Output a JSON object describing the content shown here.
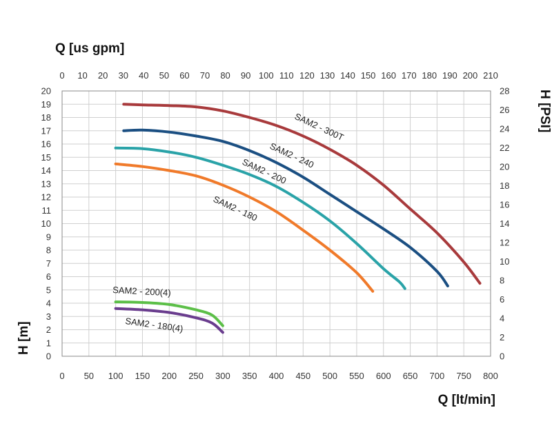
{
  "chart_data": {
    "type": "line",
    "title": "",
    "xlabel": "Q [lt/min]",
    "x2label": "Q [us gpm]",
    "ylabel": "H [m]",
    "y2label": "H [PSI]",
    "xlim": [
      0,
      800
    ],
    "x2lim": [
      0,
      210
    ],
    "ylim": [
      0,
      20
    ],
    "y2lim": [
      0,
      28
    ],
    "x_ticks": [
      0,
      50,
      100,
      150,
      200,
      250,
      300,
      350,
      400,
      450,
      500,
      550,
      600,
      650,
      700,
      750,
      800
    ],
    "x2_ticks": [
      0,
      10,
      20,
      30,
      40,
      50,
      60,
      70,
      80,
      90,
      100,
      110,
      120,
      130,
      140,
      150,
      160,
      170,
      180,
      190,
      200,
      210
    ],
    "y_ticks": [
      0,
      1,
      2,
      3,
      4,
      5,
      6,
      7,
      8,
      9,
      10,
      11,
      12,
      13,
      14,
      15,
      16,
      17,
      18,
      19,
      20
    ],
    "y2_ticks": [
      0,
      2,
      4,
      6,
      8,
      10,
      12,
      14,
      16,
      18,
      20,
      22,
      24,
      26,
      28
    ],
    "grid": true,
    "series": [
      {
        "name": "SAM2 - 300T",
        "color": "#a83a3c",
        "x": [
          115,
          150,
          200,
          250,
          300,
          350,
          400,
          450,
          500,
          550,
          600,
          650,
          700,
          750,
          780
        ],
        "y": [
          19.0,
          18.95,
          18.9,
          18.8,
          18.5,
          18.0,
          17.4,
          16.6,
          15.6,
          14.4,
          12.9,
          11.1,
          9.3,
          7.1,
          5.5
        ]
      },
      {
        "name": "SAM2 - 240",
        "color": "#1b4f82",
        "x": [
          115,
          150,
          200,
          250,
          300,
          350,
          400,
          450,
          500,
          550,
          600,
          650,
          700,
          720
        ],
        "y": [
          17.0,
          17.05,
          16.9,
          16.6,
          16.2,
          15.5,
          14.6,
          13.5,
          12.2,
          10.9,
          9.6,
          8.2,
          6.4,
          5.3
        ]
      },
      {
        "name": "SAM2 - 200",
        "color": "#2aa3a8",
        "x": [
          100,
          150,
          200,
          250,
          300,
          350,
          400,
          450,
          500,
          550,
          600,
          630,
          640
        ],
        "y": [
          15.7,
          15.65,
          15.4,
          15.0,
          14.4,
          13.7,
          12.8,
          11.6,
          10.2,
          8.5,
          6.6,
          5.6,
          5.1
        ]
      },
      {
        "name": "SAM2 - 180",
        "color": "#f07a2a",
        "x": [
          100,
          150,
          200,
          250,
          300,
          350,
          400,
          450,
          500,
          550,
          580
        ],
        "y": [
          14.5,
          14.3,
          14.0,
          13.6,
          12.9,
          12.0,
          10.9,
          9.5,
          8.0,
          6.3,
          4.9
        ]
      },
      {
        "name": "SAM2 - 200(4)",
        "color": "#5cbf48",
        "x": [
          100,
          150,
          200,
          250,
          280,
          300
        ],
        "y": [
          4.1,
          4.05,
          3.9,
          3.5,
          3.1,
          2.3
        ]
      },
      {
        "name": "SAM2 - 180(4)",
        "color": "#6a3d8e",
        "x": [
          100,
          150,
          200,
          250,
          280,
          300
        ],
        "y": [
          3.6,
          3.5,
          3.3,
          2.9,
          2.5,
          1.8
        ]
      }
    ],
    "annotations": [
      {
        "text": "SAM2 - 300T",
        "series": 0
      },
      {
        "text": "SAM2 - 240",
        "series": 1
      },
      {
        "text": "SAM2 - 200",
        "series": 2
      },
      {
        "text": "SAM2 - 180",
        "series": 3
      },
      {
        "text": "SAM2 - 200(4)",
        "series": 4
      },
      {
        "text": "SAM2 - 180(4)",
        "series": 5
      }
    ]
  }
}
